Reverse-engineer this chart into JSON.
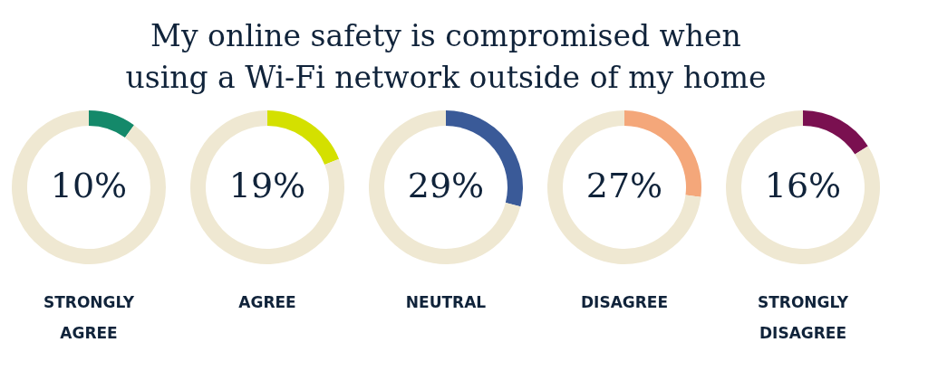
{
  "chart_data": [
    {
      "type": "other",
      "title": "My online safety is compromised when using a Wi-Fi network outside of my home"
    },
    {
      "type": "donut",
      "xlabel": "STRONGLY AGREE",
      "categories": [
        null,
        null
      ],
      "values": [
        10,
        90
      ],
      "colors": [
        "#14896a",
        "#efe8d2"
      ],
      "value_labels": [
        "10%",
        null
      ]
    },
    {
      "type": "donut",
      "xlabel": "AGREE",
      "categories": [
        null,
        null
      ],
      "values": [
        19,
        81
      ],
      "colors": [
        "#d4e000",
        "#efe8d2"
      ],
      "value_labels": [
        "19%",
        null
      ]
    },
    {
      "type": "donut",
      "xlabel": "NEUTRAL",
      "categories": [
        null,
        null
      ],
      "values": [
        29,
        71
      ],
      "colors": [
        "#3a5a98",
        "#efe8d2"
      ],
      "value_labels": [
        "29%",
        null
      ]
    },
    {
      "type": "donut",
      "xlabel": "DISAGREE",
      "categories": [
        null,
        null
      ],
      "values": [
        27,
        73
      ],
      "colors": [
        "#f4a77a",
        "#efe8d2"
      ],
      "value_labels": [
        "27%",
        null
      ]
    },
    {
      "type": "donut",
      "xlabel": "STRONGLY DISAGREE",
      "categories": [
        null,
        null
      ],
      "values": [
        16,
        84
      ],
      "colors": [
        "#7a1050",
        "#efe8d2"
      ],
      "value_labels": [
        "16%",
        null
      ]
    }
  ]
}
